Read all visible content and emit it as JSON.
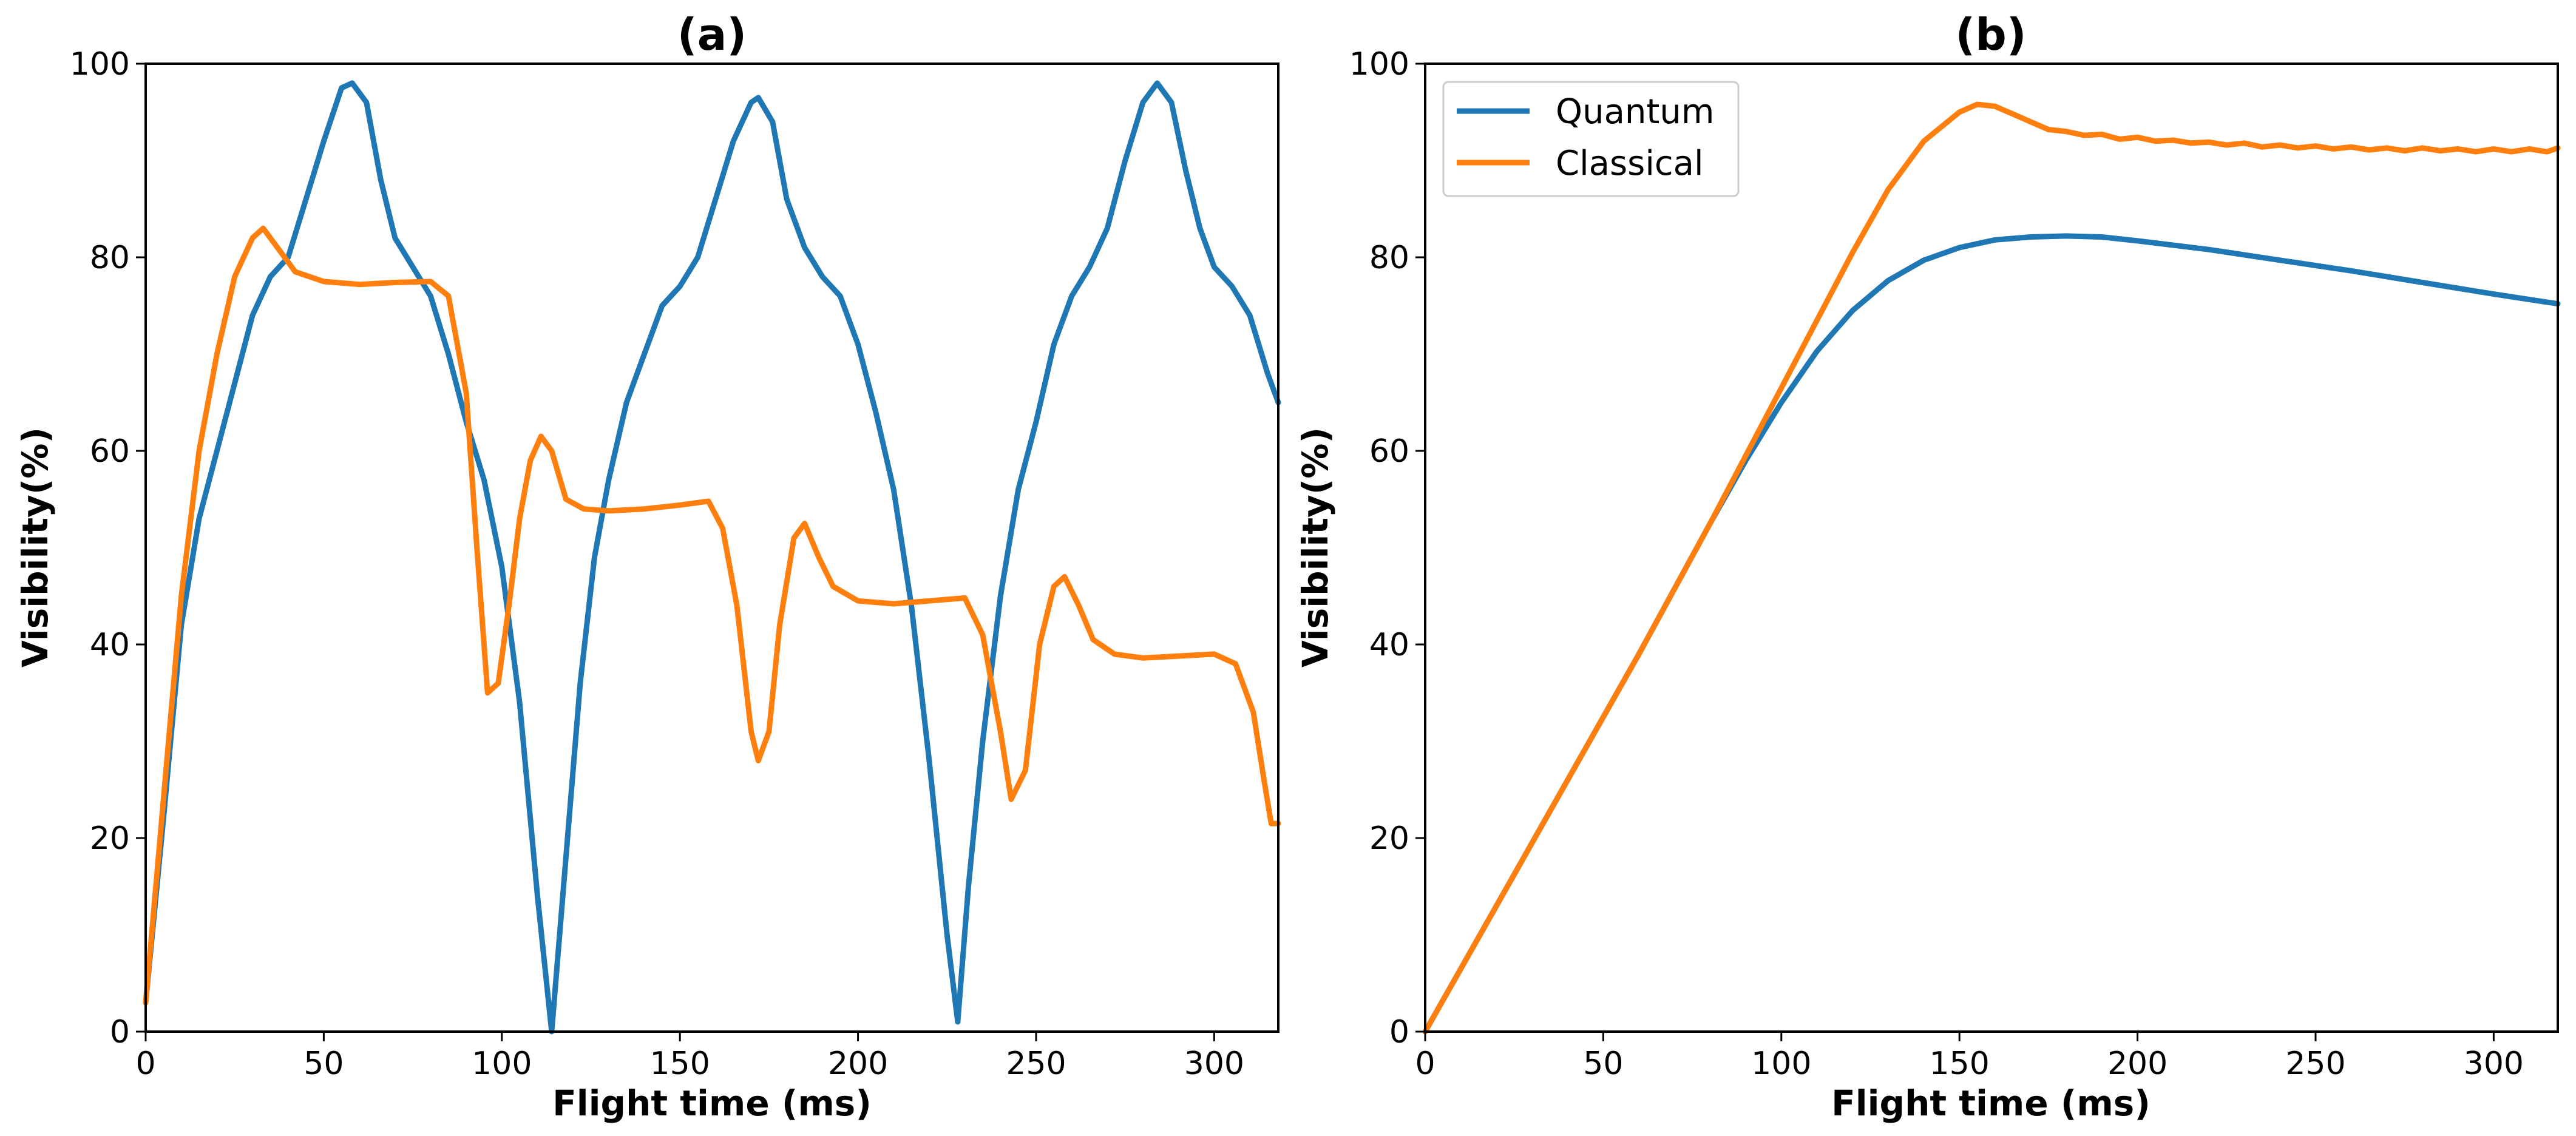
{
  "chart_data": [
    {
      "type": "line",
      "title": "(a)",
      "xlabel": "Flight time (ms)",
      "ylabel": "Visibility(%)",
      "xlim": [
        0,
        318
      ],
      "ylim": [
        0,
        100
      ],
      "xticks": [
        0,
        50,
        100,
        150,
        200,
        250,
        300
      ],
      "yticks": [
        0,
        20,
        40,
        60,
        80,
        100
      ],
      "legend": null,
      "series": [
        {
          "name": "Quantum",
          "color": "#1f77b4",
          "points": [
            [
              0,
              3
            ],
            [
              5,
              22
            ],
            [
              10,
              42
            ],
            [
              15,
              53
            ],
            [
              20,
              60
            ],
            [
              25,
              67
            ],
            [
              30,
              74
            ],
            [
              35,
              78
            ],
            [
              40,
              80
            ],
            [
              45,
              86
            ],
            [
              50,
              92
            ],
            [
              55,
              97.5
            ],
            [
              58,
              98
            ],
            [
              62,
              96
            ],
            [
              66,
              88
            ],
            [
              70,
              82
            ],
            [
              75,
              79
            ],
            [
              80,
              76
            ],
            [
              85,
              70
            ],
            [
              90,
              63
            ],
            [
              95,
              57
            ],
            [
              100,
              48
            ],
            [
              105,
              34
            ],
            [
              110,
              14
            ],
            [
              114,
              0
            ],
            [
              118,
              18
            ],
            [
              122,
              36
            ],
            [
              126,
              49
            ],
            [
              130,
              57
            ],
            [
              135,
              65
            ],
            [
              140,
              70
            ],
            [
              145,
              75
            ],
            [
              150,
              77
            ],
            [
              155,
              80
            ],
            [
              160,
              86
            ],
            [
              165,
              92
            ],
            [
              170,
              96
            ],
            [
              172,
              96.5
            ],
            [
              176,
              94
            ],
            [
              180,
              86
            ],
            [
              185,
              81
            ],
            [
              190,
              78
            ],
            [
              195,
              76
            ],
            [
              200,
              71
            ],
            [
              205,
              64
            ],
            [
              210,
              56
            ],
            [
              215,
              44
            ],
            [
              220,
              28
            ],
            [
              225,
              10
            ],
            [
              228,
              1
            ],
            [
              231,
              15
            ],
            [
              235,
              30
            ],
            [
              240,
              45
            ],
            [
              245,
              56
            ],
            [
              250,
              63
            ],
            [
              255,
              71
            ],
            [
              260,
              76
            ],
            [
              265,
              79
            ],
            [
              270,
              83
            ],
            [
              275,
              90
            ],
            [
              280,
              96
            ],
            [
              284,
              98
            ],
            [
              288,
              96
            ],
            [
              292,
              89
            ],
            [
              296,
              83
            ],
            [
              300,
              79
            ],
            [
              305,
              77
            ],
            [
              310,
              74
            ],
            [
              315,
              68
            ],
            [
              318,
              65
            ]
          ]
        },
        {
          "name": "Classical",
          "color": "#ff7f0e",
          "points": [
            [
              0,
              3
            ],
            [
              5,
              24
            ],
            [
              10,
              45
            ],
            [
              15,
              60
            ],
            [
              20,
              70
            ],
            [
              25,
              78
            ],
            [
              30,
              82
            ],
            [
              33,
              83
            ],
            [
              37,
              81
            ],
            [
              42,
              78.5
            ],
            [
              50,
              77.5
            ],
            [
              60,
              77.2
            ],
            [
              70,
              77.4
            ],
            [
              80,
              77.5
            ],
            [
              85,
              76
            ],
            [
              90,
              66
            ],
            [
              93,
              50
            ],
            [
              96,
              35
            ],
            [
              99,
              36
            ],
            [
              102,
              44
            ],
            [
              105,
              53
            ],
            [
              108,
              59
            ],
            [
              111,
              61.5
            ],
            [
              114,
              60
            ],
            [
              118,
              55
            ],
            [
              123,
              54
            ],
            [
              130,
              53.8
            ],
            [
              140,
              54
            ],
            [
              150,
              54.4
            ],
            [
              158,
              54.8
            ],
            [
              162,
              52
            ],
            [
              166,
              44
            ],
            [
              170,
              31
            ],
            [
              172,
              28
            ],
            [
              175,
              31
            ],
            [
              178,
              42
            ],
            [
              182,
              51
            ],
            [
              185,
              52.5
            ],
            [
              189,
              49
            ],
            [
              193,
              46
            ],
            [
              200,
              44.5
            ],
            [
              210,
              44.2
            ],
            [
              220,
              44.5
            ],
            [
              230,
              44.8
            ],
            [
              235,
              41
            ],
            [
              240,
              31
            ],
            [
              243,
              24
            ],
            [
              247,
              27
            ],
            [
              251,
              40
            ],
            [
              255,
              46
            ],
            [
              258,
              47
            ],
            [
              262,
              44
            ],
            [
              266,
              40.5
            ],
            [
              272,
              39
            ],
            [
              280,
              38.6
            ],
            [
              290,
              38.8
            ],
            [
              300,
              39
            ],
            [
              306,
              38
            ],
            [
              311,
              33
            ],
            [
              314,
              26
            ],
            [
              316,
              21.5
            ],
            [
              318,
              21.5
            ]
          ]
        }
      ]
    },
    {
      "type": "line",
      "title": "(b)",
      "xlabel": "Flight time (ms)",
      "ylabel": "Visibility(%)",
      "xlim": [
        0,
        318
      ],
      "ylim": [
        0,
        100
      ],
      "xticks": [
        0,
        50,
        100,
        150,
        200,
        250,
        300
      ],
      "yticks": [
        0,
        20,
        40,
        60,
        80,
        100
      ],
      "legend": "top-left",
      "series": [
        {
          "name": "Quantum",
          "color": "#1f77b4",
          "points": [
            [
              0,
              0
            ],
            [
              20,
              13
            ],
            [
              40,
              26
            ],
            [
              60,
              39
            ],
            [
              80,
              52.5
            ],
            [
              90,
              59
            ],
            [
              100,
              65
            ],
            [
              110,
              70.3
            ],
            [
              120,
              74.5
            ],
            [
              130,
              77.6
            ],
            [
              140,
              79.7
            ],
            [
              150,
              81
            ],
            [
              160,
              81.8
            ],
            [
              170,
              82.1
            ],
            [
              180,
              82.2
            ],
            [
              190,
              82.1
            ],
            [
              200,
              81.7
            ],
            [
              220,
              80.8
            ],
            [
              240,
              79.7
            ],
            [
              260,
              78.6
            ],
            [
              280,
              77.4
            ],
            [
              300,
              76.2
            ],
            [
              318,
              75.2
            ]
          ]
        },
        {
          "name": "Classical",
          "color": "#ff7f0e",
          "points": [
            [
              0,
              0
            ],
            [
              20,
              13
            ],
            [
              40,
              26
            ],
            [
              60,
              39
            ],
            [
              80,
              52.5
            ],
            [
              90,
              59.5
            ],
            [
              100,
              66.5
            ],
            [
              110,
              73.5
            ],
            [
              120,
              80.5
            ],
            [
              130,
              87
            ],
            [
              140,
              92
            ],
            [
              150,
              95
            ],
            [
              155,
              95.8
            ],
            [
              160,
              95.6
            ],
            [
              165,
              94.8
            ],
            [
              170,
              94
            ],
            [
              175,
              93.2
            ],
            [
              180,
              93
            ],
            [
              185,
              92.6
            ],
            [
              190,
              92.7
            ],
            [
              195,
              92.2
            ],
            [
              200,
              92.4
            ],
            [
              205,
              92
            ],
            [
              210,
              92.1
            ],
            [
              215,
              91.8
            ],
            [
              220,
              91.9
            ],
            [
              225,
              91.6
            ],
            [
              230,
              91.8
            ],
            [
              235,
              91.4
            ],
            [
              240,
              91.6
            ],
            [
              245,
              91.3
            ],
            [
              250,
              91.5
            ],
            [
              255,
              91.2
            ],
            [
              260,
              91.4
            ],
            [
              265,
              91.1
            ],
            [
              270,
              91.3
            ],
            [
              275,
              91
            ],
            [
              280,
              91.3
            ],
            [
              285,
              91
            ],
            [
              290,
              91.2
            ],
            [
              295,
              90.9
            ],
            [
              300,
              91.2
            ],
            [
              305,
              90.9
            ],
            [
              310,
              91.2
            ],
            [
              315,
              90.9
            ],
            [
              318,
              91.3
            ]
          ]
        }
      ]
    }
  ]
}
